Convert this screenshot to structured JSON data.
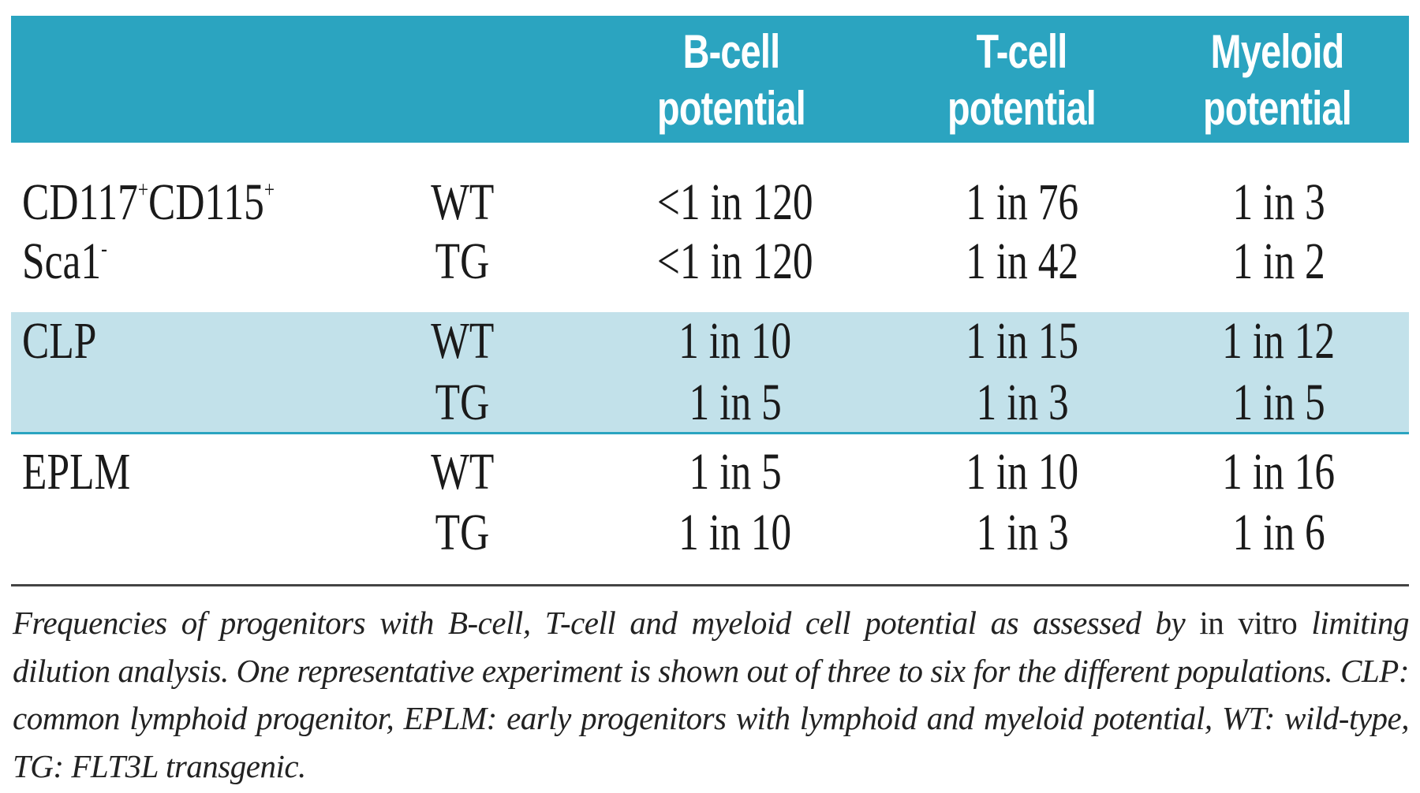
{
  "header": {
    "columns": [
      {
        "line1": "B-cell",
        "line2": "potential"
      },
      {
        "line1": "T-cell",
        "line2": "potential"
      },
      {
        "line1": "Myeloid",
        "line2": "potential"
      }
    ]
  },
  "groups": [
    {
      "label_line1": "CD117",
      "label_sup1": "+",
      "label_mid": "CD115",
      "label_sup2": "+",
      "label_line2": "Sca1",
      "label_sup3": "-",
      "rows": [
        {
          "genotype": "WT",
          "bcell": "<1 in 120",
          "tcell": "1 in 76",
          "myeloid": "1 in 3"
        },
        {
          "genotype": "TG",
          "bcell": "<1 in 120",
          "tcell": "1 in 42",
          "myeloid": "1 in 2"
        }
      ]
    },
    {
      "label": "CLP",
      "rows": [
        {
          "genotype": "WT",
          "bcell": "1 in 10",
          "tcell": "1 in 15",
          "myeloid": "1 in 12"
        },
        {
          "genotype": "TG",
          "bcell": "1 in 5",
          "tcell": "1 in 3",
          "myeloid": "1 in 5"
        }
      ]
    },
    {
      "label": "EPLM",
      "rows": [
        {
          "genotype": "WT",
          "bcell": "1 in 5",
          "tcell": "1 in 10",
          "myeloid": "1 in 16"
        },
        {
          "genotype": "TG",
          "bcell": "1 in 10",
          "tcell": "1 in 3",
          "myeloid": "1 in 6"
        }
      ]
    }
  ],
  "caption": {
    "part1": "Frequencies of progenitors with B-cell, T-cell and myeloid cell potential as assessed by ",
    "upright": "in vitro",
    "part2": " limiting dilution analysis. One representative experiment is shown out of three to six for the different populations. CLP: common lymphoid progenitor, EPLM: early progenitors with lymphoid and myeloid potential, WT: wild-type, TG: FLT3L transgenic."
  },
  "colors": {
    "header": "#2ba4c0",
    "band": "#c2e1ea"
  }
}
